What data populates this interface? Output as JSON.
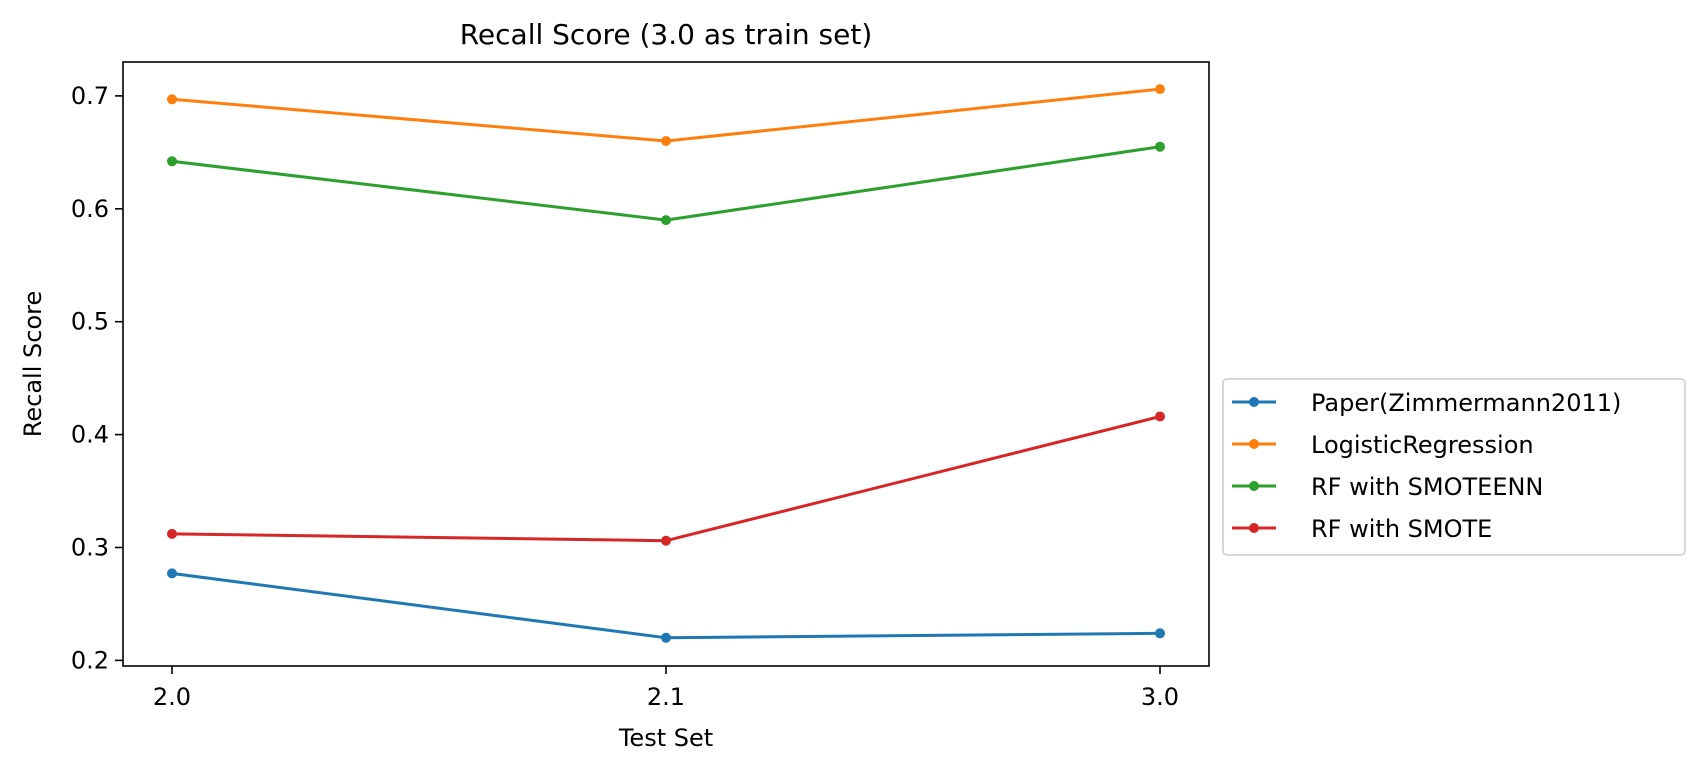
{
  "chart_data": {
    "type": "line",
    "title": "Recall Score (3.0 as train set)",
    "xlabel": "Test Set",
    "ylabel": "Recall Score",
    "categories": [
      "2.0",
      "2.1",
      "3.0"
    ],
    "ylim": [
      0.195,
      0.73
    ],
    "yticks": [
      0.2,
      0.3,
      0.4,
      0.5,
      0.6,
      0.7
    ],
    "ytick_labels": [
      "0.2",
      "0.3",
      "0.4",
      "0.5",
      "0.6",
      "0.7"
    ],
    "grid": false,
    "legend_position": "center-right outside",
    "series": [
      {
        "name": "Paper(Zimmermann2011)",
        "color": "#1f77b4",
        "values": [
          0.277,
          0.22,
          0.224
        ]
      },
      {
        "name": "LogisticRegression",
        "color": "#ff7f0e",
        "values": [
          0.697,
          0.66,
          0.706
        ]
      },
      {
        "name": "RF with SMOTEENN",
        "color": "#2ca02c",
        "values": [
          0.642,
          0.59,
          0.655
        ]
      },
      {
        "name": "RF with SMOTE",
        "color": "#d62728",
        "values": [
          0.312,
          0.306,
          0.416
        ]
      }
    ]
  }
}
